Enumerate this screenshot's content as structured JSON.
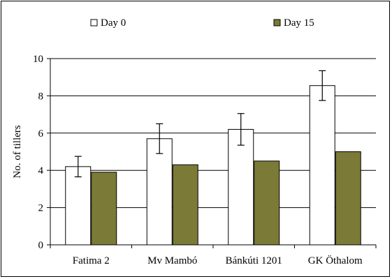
{
  "chart_data": {
    "type": "bar",
    "title": "",
    "xlabel": "",
    "ylabel": "No. of tillers",
    "categories": [
      "Fatima 2",
      "Mv Mambó",
      "Bánkúti 1201",
      "GK Öthalom"
    ],
    "series": [
      {
        "name": "Day 0",
        "color": "#ffffff",
        "values": [
          4.2,
          5.7,
          6.2,
          8.55
        ],
        "error": [
          0.55,
          0.8,
          0.85,
          0.8
        ]
      },
      {
        "name": "Day 15",
        "color": "#7b7a37",
        "values": [
          3.9,
          4.3,
          4.5,
          5.0
        ]
      }
    ],
    "ylim": [
      0,
      10
    ],
    "yticks": [
      0,
      2,
      4,
      6,
      8,
      10
    ],
    "grid": true,
    "legend_position": "top"
  }
}
